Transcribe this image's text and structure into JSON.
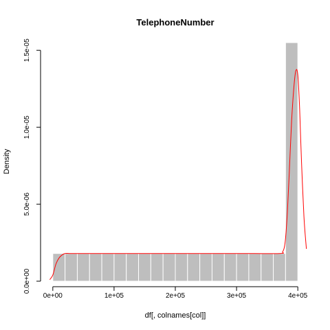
{
  "chart_data": {
    "type": "histogram",
    "title": "TelephoneNumber",
    "xlabel": "df[, colnames[col]]",
    "ylabel": "Density",
    "xlim": [
      -20000,
      420000
    ],
    "ylim": [
      0,
      1.55e-05
    ],
    "x_ticks": [
      {
        "value": 0,
        "label": "0e+00"
      },
      {
        "value": 100000,
        "label": "1e+05"
      },
      {
        "value": 200000,
        "label": "2e+05"
      },
      {
        "value": 300000,
        "label": "3e+05"
      },
      {
        "value": 400000,
        "label": "4e+05"
      }
    ],
    "y_ticks": [
      {
        "value": 0,
        "label": "0.0e+00"
      },
      {
        "value": 5e-06,
        "label": "5.0e-06"
      },
      {
        "value": 1e-05,
        "label": "1.0e-05"
      },
      {
        "value": 1.5e-05,
        "label": "1.5e-05"
      }
    ],
    "bins": [
      {
        "start": 0,
        "end": 20000,
        "density": 1.8e-06
      },
      {
        "start": 20000,
        "end": 40000,
        "density": 1.8e-06
      },
      {
        "start": 40000,
        "end": 60000,
        "density": 1.8e-06
      },
      {
        "start": 60000,
        "end": 80000,
        "density": 1.8e-06
      },
      {
        "start": 80000,
        "end": 100000,
        "density": 1.8e-06
      },
      {
        "start": 100000,
        "end": 120000,
        "density": 1.8e-06
      },
      {
        "start": 120000,
        "end": 140000,
        "density": 1.8e-06
      },
      {
        "start": 140000,
        "end": 160000,
        "density": 1.8e-06
      },
      {
        "start": 160000,
        "end": 180000,
        "density": 1.8e-06
      },
      {
        "start": 180000,
        "end": 200000,
        "density": 1.8e-06
      },
      {
        "start": 200000,
        "end": 220000,
        "density": 1.8e-06
      },
      {
        "start": 220000,
        "end": 240000,
        "density": 1.8e-06
      },
      {
        "start": 240000,
        "end": 260000,
        "density": 1.8e-06
      },
      {
        "start": 260000,
        "end": 280000,
        "density": 1.8e-06
      },
      {
        "start": 280000,
        "end": 300000,
        "density": 1.8e-06
      },
      {
        "start": 300000,
        "end": 320000,
        "density": 1.8e-06
      },
      {
        "start": 320000,
        "end": 340000,
        "density": 1.8e-06
      },
      {
        "start": 340000,
        "end": 360000,
        "density": 1.8e-06
      },
      {
        "start": 360000,
        "end": 380000,
        "density": 1.8e-06
      },
      {
        "start": 380000,
        "end": 400000,
        "density": 1.55e-05
      }
    ],
    "density_curve": {
      "x": [
        -5000,
        0,
        5000,
        10000,
        15000,
        20000,
        30000,
        50000,
        100000,
        200000,
        300000,
        370000,
        375000,
        378000,
        380000,
        383000,
        386000,
        390000,
        394000,
        397000,
        400000,
        403000,
        406000,
        410000,
        414000
      ],
      "y": [
        1e-07,
        4e-07,
        1.1e-06,
        1.5e-06,
        1.7e-06,
        1.8e-06,
        1.8e-06,
        1.8e-06,
        1.8e-06,
        1.8e-06,
        1.8e-06,
        1.8e-06,
        1.9e-06,
        2.2e-06,
        2.8e-06,
        4.5e-06,
        7e-06,
        1.05e-05,
        1.28e-05,
        1.37e-05,
        1.34e-05,
        1.12e-05,
        7.8e-06,
        4.2e-06,
        2.1e-06
      ]
    },
    "bar_color": "#bebebe",
    "bar_border_color": "#ffffff",
    "curve_color": "#ff0000",
    "grid": false
  }
}
